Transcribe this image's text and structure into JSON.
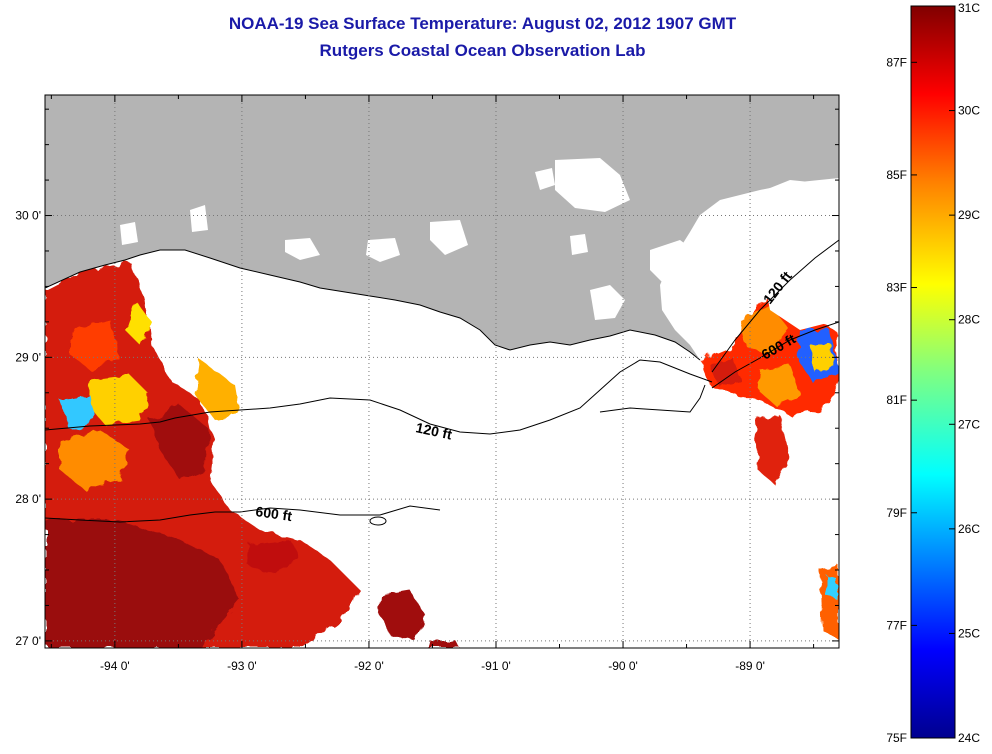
{
  "title": "NOAA-19 Sea Surface Temperature:  August 02, 2012 1907 GMT",
  "subtitle": "Rutgers Coastal Ocean Observation Lab",
  "map": {
    "lon_range": [
      -94.55,
      -88.3
    ],
    "lat_range": [
      26.95,
      30.85
    ],
    "lon_ticks": [
      {
        "value": -94,
        "label": "-94 0'"
      },
      {
        "value": -93,
        "label": "-93 0'"
      },
      {
        "value": -92,
        "label": "-92 0'"
      },
      {
        "value": -91,
        "label": "-91 0'"
      },
      {
        "value": -90,
        "label": "-90 0'"
      },
      {
        "value": -89,
        "label": "-89 0'"
      }
    ],
    "lat_ticks": [
      {
        "value": 27,
        "label": "27 0'"
      },
      {
        "value": 28,
        "label": "28 0'"
      },
      {
        "value": 29,
        "label": "29 0'"
      },
      {
        "value": 30,
        "label": "30 0'"
      }
    ],
    "grid": "dotted",
    "land_color": "#b4b4b4",
    "contours": [
      {
        "label": "120 ft"
      },
      {
        "label": "600 ft"
      },
      {
        "label": "120 ft"
      },
      {
        "label": "600 ft"
      }
    ]
  },
  "colorbar": {
    "range_c": [
      24,
      31
    ],
    "range_f": [
      75,
      88
    ],
    "celsius_ticks": [
      {
        "value": 31,
        "label": "31C"
      },
      {
        "value": 30,
        "label": "30C"
      },
      {
        "value": 29,
        "label": "29C"
      },
      {
        "value": 28,
        "label": "28C"
      },
      {
        "value": 27,
        "label": "27C"
      },
      {
        "value": 26,
        "label": "26C"
      },
      {
        "value": 25,
        "label": "25C"
      },
      {
        "value": 24,
        "label": "24C"
      }
    ],
    "fahrenheit_ticks": [
      {
        "value": 87,
        "label": "87F"
      },
      {
        "value": 85,
        "label": "85F"
      },
      {
        "value": 83,
        "label": "83F"
      },
      {
        "value": 81,
        "label": "81F"
      },
      {
        "value": 79,
        "label": "79F"
      },
      {
        "value": 77,
        "label": "77F"
      },
      {
        "value": 75,
        "label": "75F"
      }
    ],
    "colors": [
      "#00008f",
      "#0000ff",
      "#0080ff",
      "#00ffff",
      "#80ff80",
      "#ffff00",
      "#ff8000",
      "#ff0000",
      "#800000"
    ]
  }
}
